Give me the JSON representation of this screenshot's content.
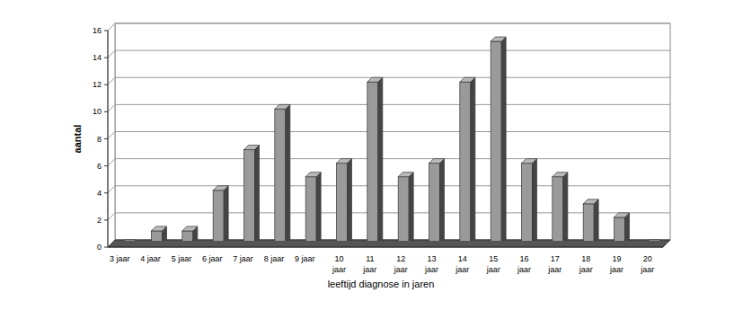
{
  "chart_data": {
    "type": "bar",
    "x_label": "leeftijd diagnose in jaren",
    "y_label": "aantal",
    "categories": [
      "3 jaar",
      "4 jaar",
      "5 jaar",
      "6 jaar",
      "7 jaar",
      "8 jaar",
      "9 jaar",
      "10 jaar",
      "11 jaar",
      "12 jaar",
      "13 jaar",
      "14 jaar",
      "15 jaar",
      "16 jaar",
      "17 jaar",
      "18 jaar",
      "19 jaar",
      "20 jaar"
    ],
    "values": [
      0,
      1,
      1,
      4,
      7,
      10,
      5,
      6,
      12,
      5,
      6,
      12,
      15,
      6,
      5,
      3,
      2,
      0
    ],
    "color": "#9a9a9a",
    "ylim": [
      0,
      16
    ],
    "yticks": [
      0,
      2,
      4,
      6,
      8,
      10,
      12,
      14,
      16
    ],
    "grid": true
  }
}
